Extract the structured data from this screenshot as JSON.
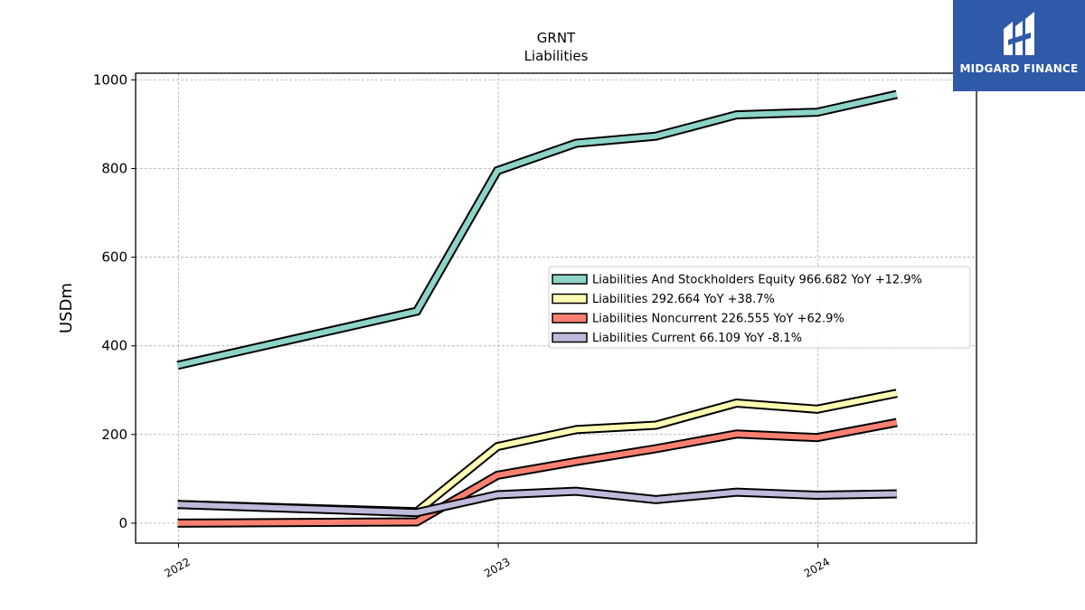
{
  "chart_data": {
    "type": "line",
    "title": "GRNT",
    "subtitle": "Liabilities",
    "ylabel": "USDm",
    "xlabel": "",
    "ylim": [
      -45,
      1015
    ],
    "xlim": [
      "2021-11-13",
      "2024-06-30"
    ],
    "x_ticks": [
      {
        "date": "2022-01-01",
        "label": "2022"
      },
      {
        "date": "2023-01-01",
        "label": "2023"
      },
      {
        "date": "2024-01-01",
        "label": "2024"
      }
    ],
    "y_ticks": [
      0,
      200,
      400,
      600,
      800,
      1000
    ],
    "grid": true,
    "legend_position": "center-right",
    "x": [
      "2021-12-31",
      "2022-09-30",
      "2022-12-31",
      "2023-03-31",
      "2023-06-30",
      "2023-09-30",
      "2023-12-31",
      "2024-03-31"
    ],
    "series": [
      {
        "name": "Liabilities And Stockholders Equity",
        "legend_label": "Liabilities And Stockholders Equity  966.682 YoY +12.9%",
        "color": "#8dd3c7",
        "values": [
          356,
          478,
          795,
          857,
          873,
          921,
          927,
          967
        ]
      },
      {
        "name": "Liabilities",
        "legend_label": "Liabilities  292.664 YoY +38.7%",
        "color": "#ffffb3",
        "values": [
          42,
          26,
          173,
          211,
          221,
          271,
          257,
          293
        ]
      },
      {
        "name": "Liabilities Noncurrent",
        "legend_label": "Liabilities Noncurrent  226.555 YoY +62.9%",
        "color": "#fb8072",
        "values": [
          0,
          3,
          108,
          139,
          168,
          201,
          193,
          227
        ]
      },
      {
        "name": "Liabilities Current",
        "legend_label": "Liabilities Current  66.109 YoY -8.1%",
        "color": "#bebada",
        "values": [
          42,
          24,
          64,
          72,
          53,
          70,
          63,
          66
        ]
      }
    ]
  },
  "logo": {
    "text": "MIDGARD FINANCE"
  }
}
